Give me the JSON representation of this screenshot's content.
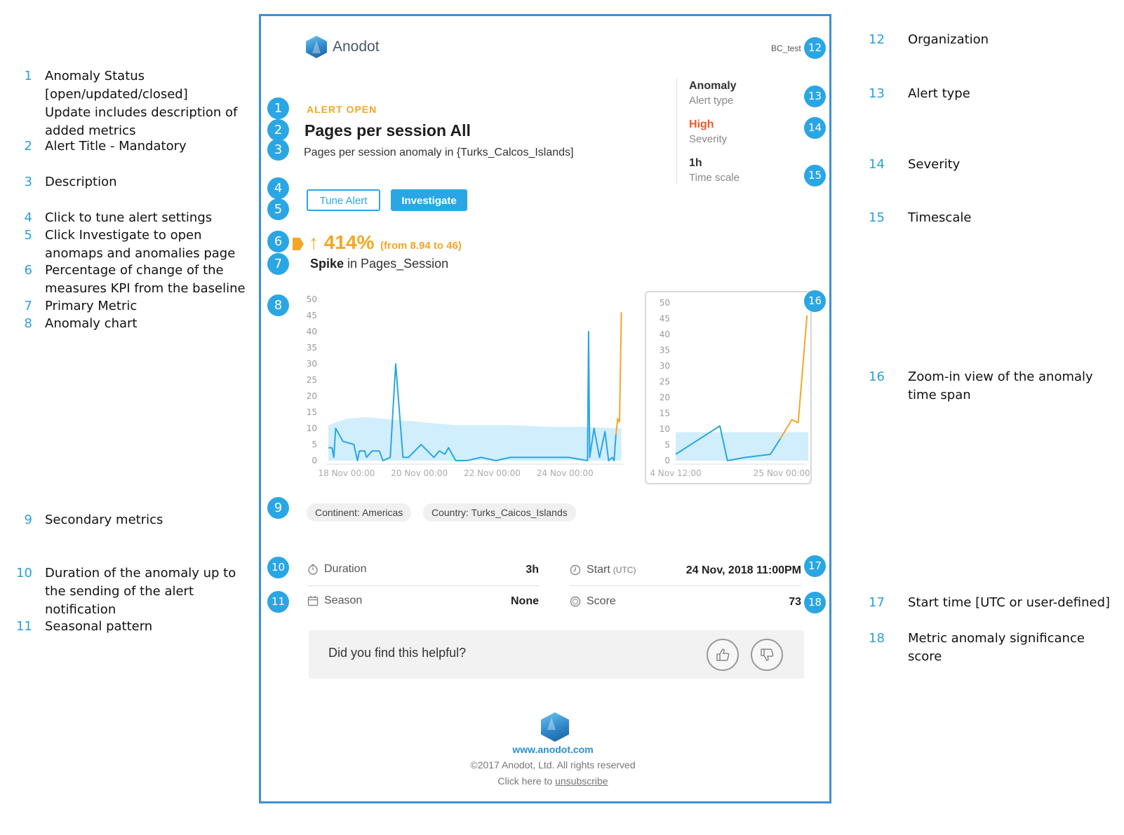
{
  "legend_left": [
    {
      "num": "1",
      "lines": [
        "Anomaly Status",
        "[open/updated/closed]",
        "Update includes description of",
        "added metrics"
      ]
    },
    {
      "num": "2",
      "lines": [
        "Alert Title - Mandatory"
      ]
    },
    {
      "num": "3",
      "lines": [
        "Description"
      ]
    },
    {
      "num": "4",
      "lines": [
        "Click to tune alert settings"
      ]
    },
    {
      "num": "5",
      "lines": [
        "Click Investigate to open",
        "anomaps and anomalies page"
      ]
    },
    {
      "num": "6",
      "lines": [
        "Percentage of change of the",
        "measures KPI from the baseline"
      ]
    },
    {
      "num": "7",
      "lines": [
        "Primary Metric"
      ]
    },
    {
      "num": "8",
      "lines": [
        "Anomaly chart"
      ]
    },
    {
      "num": "9",
      "lines": [
        "Secondary metrics"
      ]
    },
    {
      "num": "10",
      "lines": [
        "Duration of the anomaly up to",
        "the sending of the alert",
        "notification"
      ]
    },
    {
      "num": "11",
      "lines": [
        "Seasonal pattern"
      ]
    }
  ],
  "legend_right": [
    {
      "num": "12",
      "lines": [
        "Organization"
      ]
    },
    {
      "num": "13",
      "lines": [
        "Alert type"
      ]
    },
    {
      "num": "14",
      "lines": [
        "Severity"
      ]
    },
    {
      "num": "15",
      "lines": [
        "Timescale"
      ]
    },
    {
      "num": "16",
      "lines": [
        "Zoom-in view of the anomaly",
        "time span"
      ]
    },
    {
      "num": "17",
      "lines": [
        "Start time [UTC or user-defined]"
      ]
    },
    {
      "num": "18",
      "lines": [
        "Metric anomaly significance",
        "score"
      ]
    }
  ],
  "email": {
    "brand": "Anodot",
    "organization": "BC_test",
    "status": "ALERT OPEN",
    "title": "Pages per session All",
    "description": "Pages per session anomaly in {Turks_Calcos_Islands]",
    "side": {
      "alert_type_value": "Anomaly",
      "alert_type_label": "Alert type",
      "severity_value": "High",
      "severity_label": "Severity",
      "timescale_value": "1h",
      "timescale_label": "Time scale"
    },
    "buttons": {
      "tune": "Tune Alert",
      "investigate": "Investigate"
    },
    "change": {
      "percent": "↑ 414%",
      "from": "(from 8.94 to 46)"
    },
    "metric": {
      "kind": "Spike",
      "connector": " in Pages_Session"
    },
    "chips": [
      "Continent: Americas",
      "Country: Turks_Caicos_Islands"
    ],
    "info": {
      "duration_label": "Duration",
      "duration_value": "3h",
      "season_label": "Season",
      "season_value": "None",
      "start_label": "Start",
      "start_sub": "(UTC)",
      "start_value": "24 Nov, 2018 11:00PM",
      "score_label": "Score",
      "score_value": "73"
    },
    "feedback": "Did you find this helpful?",
    "footer": {
      "link": "www.anodot.com",
      "copyright": "©2017 Anodot, Ltd. All rights reserved",
      "unsubscribe_prefix": "Click here to ",
      "unsubscribe_link": "unsubscribe"
    }
  },
  "badges": [
    "1",
    "2",
    "3",
    "4",
    "5",
    "6",
    "7",
    "8",
    "9",
    "10",
    "11",
    "12",
    "13",
    "14",
    "15",
    "16",
    "17",
    "18"
  ],
  "colors": {
    "accent": "#2aa6e4",
    "anomaly": "#f5a623",
    "severity_high": "#ef5a2a",
    "baseline": "#c9ebfb"
  },
  "chart_data": [
    {
      "type": "line",
      "name": "main",
      "ylim": [
        0,
        50
      ],
      "yticks": [
        0,
        5,
        10,
        15,
        20,
        25,
        30,
        35,
        40,
        45,
        50
      ],
      "xlim": [
        0,
        8
      ],
      "xtick_labels": [
        {
          "x": 0.5,
          "label": "18 Nov 00:00"
        },
        {
          "x": 2.5,
          "label": "20 Nov 00:00"
        },
        {
          "x": 4.5,
          "label": "22 Nov 00:00"
        },
        {
          "x": 6.5,
          "label": "24 Nov 00:00"
        }
      ],
      "series": [
        {
          "role": "normal",
          "points": [
            [
              0,
              4
            ],
            [
              0.1,
              4
            ],
            [
              0.15,
              1
            ],
            [
              0.2,
              10
            ],
            [
              0.4,
              6
            ],
            [
              0.7,
              5
            ],
            [
              0.8,
              0
            ],
            [
              0.85,
              3
            ],
            [
              1.0,
              3
            ],
            [
              1.05,
              1
            ],
            [
              1.2,
              3
            ],
            [
              1.4,
              3
            ],
            [
              1.5,
              0
            ],
            [
              1.7,
              1
            ],
            [
              1.85,
              30
            ],
            [
              2.05,
              1
            ],
            [
              2.2,
              1
            ],
            [
              2.55,
              5
            ],
            [
              2.9,
              1
            ],
            [
              3.05,
              3
            ],
            [
              3.2,
              2
            ],
            [
              3.3,
              4
            ],
            [
              3.5,
              0
            ],
            [
              3.8,
              0
            ],
            [
              4.2,
              1
            ],
            [
              4.6,
              0
            ],
            [
              5.0,
              1
            ],
            [
              5.5,
              1
            ],
            [
              6.0,
              1
            ],
            [
              6.6,
              1
            ],
            [
              7.12,
              0
            ],
            [
              7.15,
              40
            ],
            [
              7.18,
              1
            ],
            [
              7.3,
              10
            ],
            [
              7.45,
              1
            ],
            [
              7.6,
              9
            ],
            [
              7.7,
              0
            ],
            [
              7.8,
              1
            ],
            [
              7.85,
              0
            ],
            [
              7.9,
              8
            ]
          ]
        },
        {
          "role": "anomaly",
          "points": [
            [
              7.9,
              8
            ],
            [
              7.95,
              13
            ],
            [
              8.0,
              12
            ],
            [
              8.05,
              46
            ]
          ]
        }
      ],
      "baseline_band": [
        [
          0,
          11
        ],
        [
          0.5,
          13
        ],
        [
          1.0,
          13.5
        ],
        [
          1.5,
          13
        ],
        [
          2.0,
          12.5
        ],
        [
          2.5,
          12
        ],
        [
          3.0,
          11.5
        ],
        [
          3.5,
          11
        ],
        [
          4.0,
          11
        ],
        [
          5.0,
          11
        ],
        [
          6.0,
          10.5
        ],
        [
          7.0,
          10.5
        ],
        [
          8.05,
          10
        ]
      ]
    },
    {
      "type": "line",
      "name": "zoom",
      "ylim": [
        0,
        50
      ],
      "yticks": [
        0,
        5,
        10,
        15,
        20,
        25,
        30,
        35,
        40,
        45,
        50
      ],
      "xlim": [
        0,
        10
      ],
      "xtick_labels": [
        {
          "x": 0,
          "label": "4 Nov 12:00"
        },
        {
          "x": 8.4,
          "label": "25 Nov 00:00"
        }
      ],
      "series": [
        {
          "role": "normal",
          "points": [
            [
              0,
              2
            ],
            [
              3.5,
              11
            ],
            [
              4.1,
              0
            ],
            [
              5.5,
              1
            ],
            [
              7.5,
              2
            ],
            [
              8.3,
              7
            ]
          ]
        },
        {
          "role": "anomaly",
          "points": [
            [
              8.3,
              7
            ],
            [
              9.2,
              13
            ],
            [
              9.7,
              12
            ],
            [
              10.4,
              46
            ]
          ]
        }
      ],
      "baseline_band": [
        [
          0,
          9
        ],
        [
          10.5,
          9
        ]
      ]
    }
  ]
}
